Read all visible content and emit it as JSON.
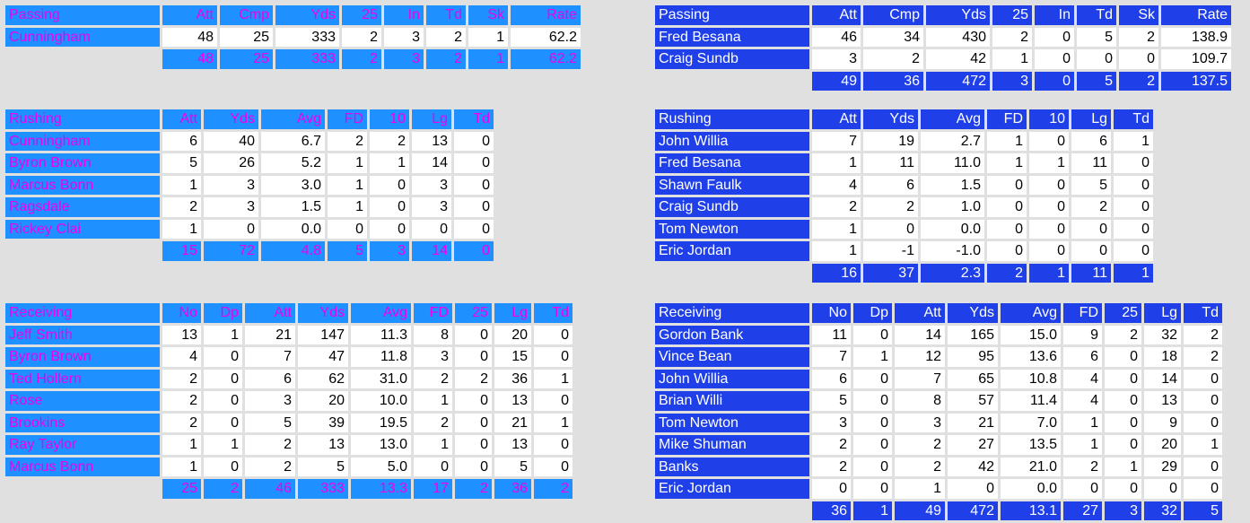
{
  "teamA": {
    "passing": {
      "columns": [
        "Passing",
        "Att",
        "Cmp",
        "Yds",
        "25",
        "In",
        "Td",
        "Sk",
        "Rate"
      ],
      "rows": [
        [
          "Cunningham",
          "48",
          "25",
          "333",
          "2",
          "3",
          "2",
          "1",
          "62.2"
        ]
      ],
      "totals": [
        "",
        "48",
        "25",
        "333",
        "2",
        "3",
        "2",
        "1",
        "62.2"
      ]
    },
    "rushing": {
      "columns": [
        "Rushing",
        "Att",
        "Yds",
        "Avg",
        "FD",
        "10",
        "Lg",
        "Td"
      ],
      "rows": [
        [
          "Cunningham",
          "6",
          "40",
          "6.7",
          "2",
          "2",
          "13",
          "0"
        ],
        [
          "Byron Brown",
          "5",
          "26",
          "5.2",
          "1",
          "1",
          "14",
          "0"
        ],
        [
          "Marcus Bonn",
          "1",
          "3",
          "3.0",
          "1",
          "0",
          "3",
          "0"
        ],
        [
          "Ragsdale",
          "2",
          "3",
          "1.5",
          "1",
          "0",
          "3",
          "0"
        ],
        [
          "Rickey Clai",
          "1",
          "0",
          "0.0",
          "0",
          "0",
          "0",
          "0"
        ]
      ],
      "totals": [
        "",
        "15",
        "72",
        "4.8",
        "5",
        "3",
        "14",
        "0"
      ]
    },
    "receiving": {
      "columns": [
        "Receiving",
        "No",
        "Dp",
        "Att",
        "Yds",
        "Avg",
        "FD",
        "25",
        "Lg",
        "Td"
      ],
      "rows": [
        [
          "Jeff Smith",
          "13",
          "1",
          "21",
          "147",
          "11.3",
          "8",
          "0",
          "20",
          "0"
        ],
        [
          "Byron Brown",
          "4",
          "0",
          "7",
          "47",
          "11.8",
          "3",
          "0",
          "15",
          "0"
        ],
        [
          "Ted Hollern",
          "2",
          "0",
          "6",
          "62",
          "31.0",
          "2",
          "2",
          "36",
          "1"
        ],
        [
          "Rose",
          "2",
          "0",
          "3",
          "20",
          "10.0",
          "1",
          "0",
          "13",
          "0"
        ],
        [
          "Brookins",
          "2",
          "0",
          "5",
          "39",
          "19.5",
          "2",
          "0",
          "21",
          "1"
        ],
        [
          "Ray Taylor",
          "1",
          "1",
          "2",
          "13",
          "13.0",
          "1",
          "0",
          "13",
          "0"
        ],
        [
          "Marcus Bonn",
          "1",
          "0",
          "2",
          "5",
          "5.0",
          "0",
          "0",
          "5",
          "0"
        ]
      ],
      "totals": [
        "",
        "25",
        "2",
        "46",
        "333",
        "13.3",
        "17",
        "2",
        "36",
        "2"
      ]
    }
  },
  "teamB": {
    "passing": {
      "columns": [
        "Passing",
        "Att",
        "Cmp",
        "Yds",
        "25",
        "In",
        "Td",
        "Sk",
        "Rate"
      ],
      "rows": [
        [
          "Fred Besana",
          "46",
          "34",
          "430",
          "2",
          "0",
          "5",
          "2",
          "138.9"
        ],
        [
          "Craig Sundb",
          "3",
          "2",
          "42",
          "1",
          "0",
          "0",
          "0",
          "109.7"
        ]
      ],
      "totals": [
        "",
        "49",
        "36",
        "472",
        "3",
        "0",
        "5",
        "2",
        "137.5"
      ]
    },
    "rushing": {
      "columns": [
        "Rushing",
        "Att",
        "Yds",
        "Avg",
        "FD",
        "10",
        "Lg",
        "Td"
      ],
      "rows": [
        [
          "John Willia",
          "7",
          "19",
          "2.7",
          "1",
          "0",
          "6",
          "1"
        ],
        [
          "Fred Besana",
          "1",
          "11",
          "11.0",
          "1",
          "1",
          "11",
          "0"
        ],
        [
          "Shawn Faulk",
          "4",
          "6",
          "1.5",
          "0",
          "0",
          "5",
          "0"
        ],
        [
          "Craig Sundb",
          "2",
          "2",
          "1.0",
          "0",
          "0",
          "2",
          "0"
        ],
        [
          "Tom Newton",
          "1",
          "0",
          "0.0",
          "0",
          "0",
          "0",
          "0"
        ],
        [
          "Eric Jordan",
          "1",
          "-1",
          "-1.0",
          "0",
          "0",
          "0",
          "0"
        ]
      ],
      "totals": [
        "",
        "16",
        "37",
        "2.3",
        "2",
        "1",
        "11",
        "1"
      ]
    },
    "receiving": {
      "columns": [
        "Receiving",
        "No",
        "Dp",
        "Att",
        "Yds",
        "Avg",
        "FD",
        "25",
        "Lg",
        "Td"
      ],
      "rows": [
        [
          "Gordon Bank",
          "11",
          "0",
          "14",
          "165",
          "15.0",
          "9",
          "2",
          "32",
          "2"
        ],
        [
          "Vince Bean",
          "7",
          "1",
          "12",
          "95",
          "13.6",
          "6",
          "0",
          "18",
          "2"
        ],
        [
          "John Willia",
          "6",
          "0",
          "7",
          "65",
          "10.8",
          "4",
          "0",
          "14",
          "0"
        ],
        [
          "Brian Willi",
          "5",
          "0",
          "8",
          "57",
          "11.4",
          "4",
          "0",
          "13",
          "0"
        ],
        [
          "Tom Newton",
          "3",
          "0",
          "3",
          "21",
          "7.0",
          "1",
          "0",
          "9",
          "0"
        ],
        [
          "Mike Shuman",
          "2",
          "0",
          "2",
          "27",
          "13.5",
          "1",
          "0",
          "20",
          "1"
        ],
        [
          "Banks",
          "2",
          "0",
          "2",
          "42",
          "21.0",
          "2",
          "1",
          "29",
          "0"
        ],
        [
          "Eric Jordan",
          "0",
          "0",
          "1",
          "0",
          "0.0",
          "0",
          "0",
          "0",
          "0"
        ]
      ],
      "totals": [
        "",
        "36",
        "1",
        "49",
        "472",
        "13.1",
        "27",
        "3",
        "32",
        "5"
      ]
    }
  }
}
